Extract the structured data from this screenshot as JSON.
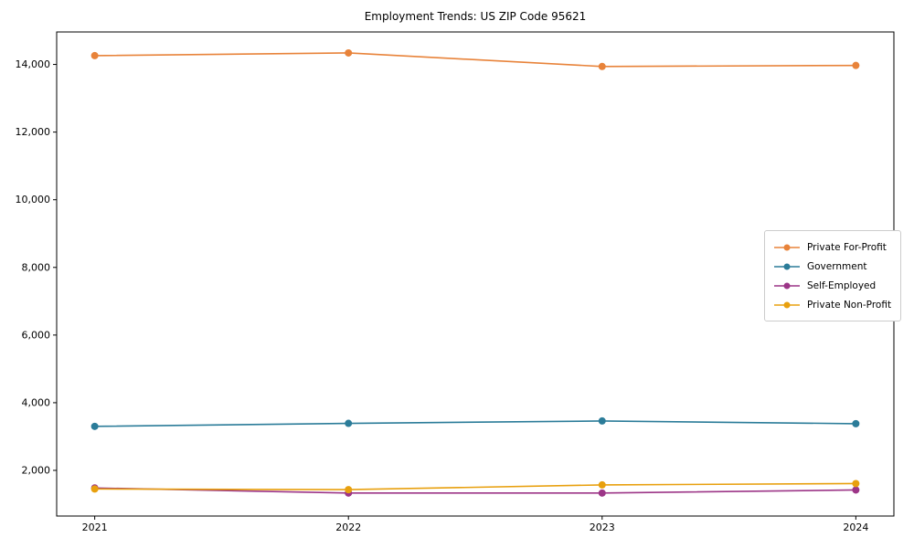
{
  "chart_data": {
    "type": "line",
    "title": "Employment Trends: US ZIP Code 95621",
    "xlabel": "",
    "ylabel": "",
    "x": [
      2021,
      2022,
      2023,
      2024
    ],
    "x_tick_labels": [
      "2021",
      "2022",
      "2023",
      "2024"
    ],
    "yticks": [
      2000,
      4000,
      6000,
      8000,
      10000,
      12000,
      14000
    ],
    "ytick_labels": [
      "2,000",
      "4,000",
      "6,000",
      "8,000",
      "10,000",
      "12,000",
      "14,000"
    ],
    "ylim": [
      650,
      14960
    ],
    "grid": false,
    "legend_position": "center right",
    "series": [
      {
        "name": "Private For-Profit",
        "color": "#e8833a",
        "values": [
          14260,
          14340,
          13940,
          13970
        ]
      },
      {
        "name": "Government",
        "color": "#2b7c99",
        "values": [
          3300,
          3390,
          3460,
          3380
        ]
      },
      {
        "name": "Self-Employed",
        "color": "#9c3587",
        "values": [
          1480,
          1330,
          1330,
          1420
        ]
      },
      {
        "name": "Private Non-Profit",
        "color": "#e8a00e",
        "values": [
          1450,
          1430,
          1570,
          1610
        ]
      }
    ]
  }
}
